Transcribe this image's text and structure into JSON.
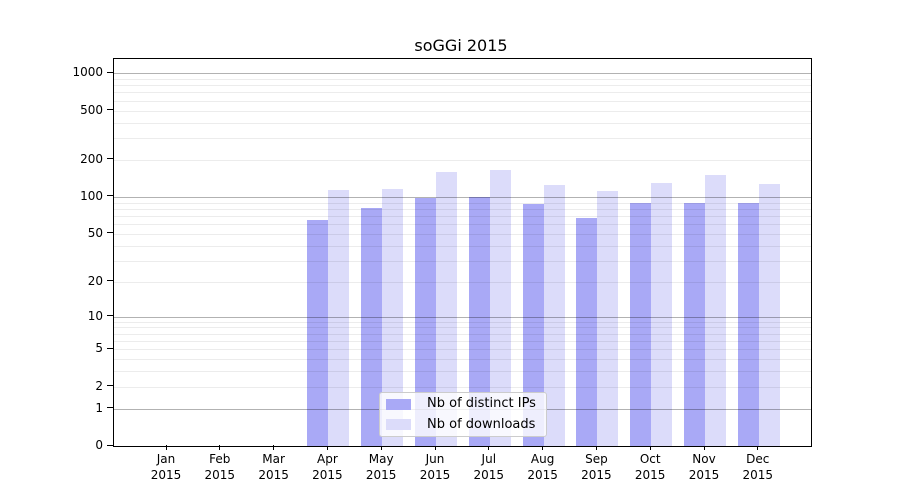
{
  "chart_data": {
    "type": "bar",
    "title": "soGGi 2015",
    "categories": [
      "Jan",
      "Feb",
      "Mar",
      "Apr",
      "May",
      "Jun",
      "Jul",
      "Aug",
      "Sep",
      "Oct",
      "Nov",
      "Dec"
    ],
    "category_sublabel": "2015",
    "series": [
      {
        "name": "Nb of distinct IPs",
        "color": "#a9a9f6",
        "values": [
          0,
          0,
          0,
          65,
          81,
          98,
          100,
          88,
          68,
          89,
          90,
          90
        ]
      },
      {
        "name": "Nb of downloads",
        "color": "#dcdcfa",
        "values": [
          0,
          0,
          0,
          113,
          116,
          160,
          164,
          124,
          111,
          129,
          151,
          127
        ]
      }
    ],
    "yscale": "log1p",
    "yticks": [
      0,
      1,
      2,
      5,
      10,
      20,
      50,
      100,
      200,
      500,
      1000
    ],
    "major_gridlines": [
      1,
      10,
      100,
      1000
    ],
    "ylim": [
      0,
      1300
    ],
    "grid": true,
    "legend_position": "inside-bottom-center"
  }
}
